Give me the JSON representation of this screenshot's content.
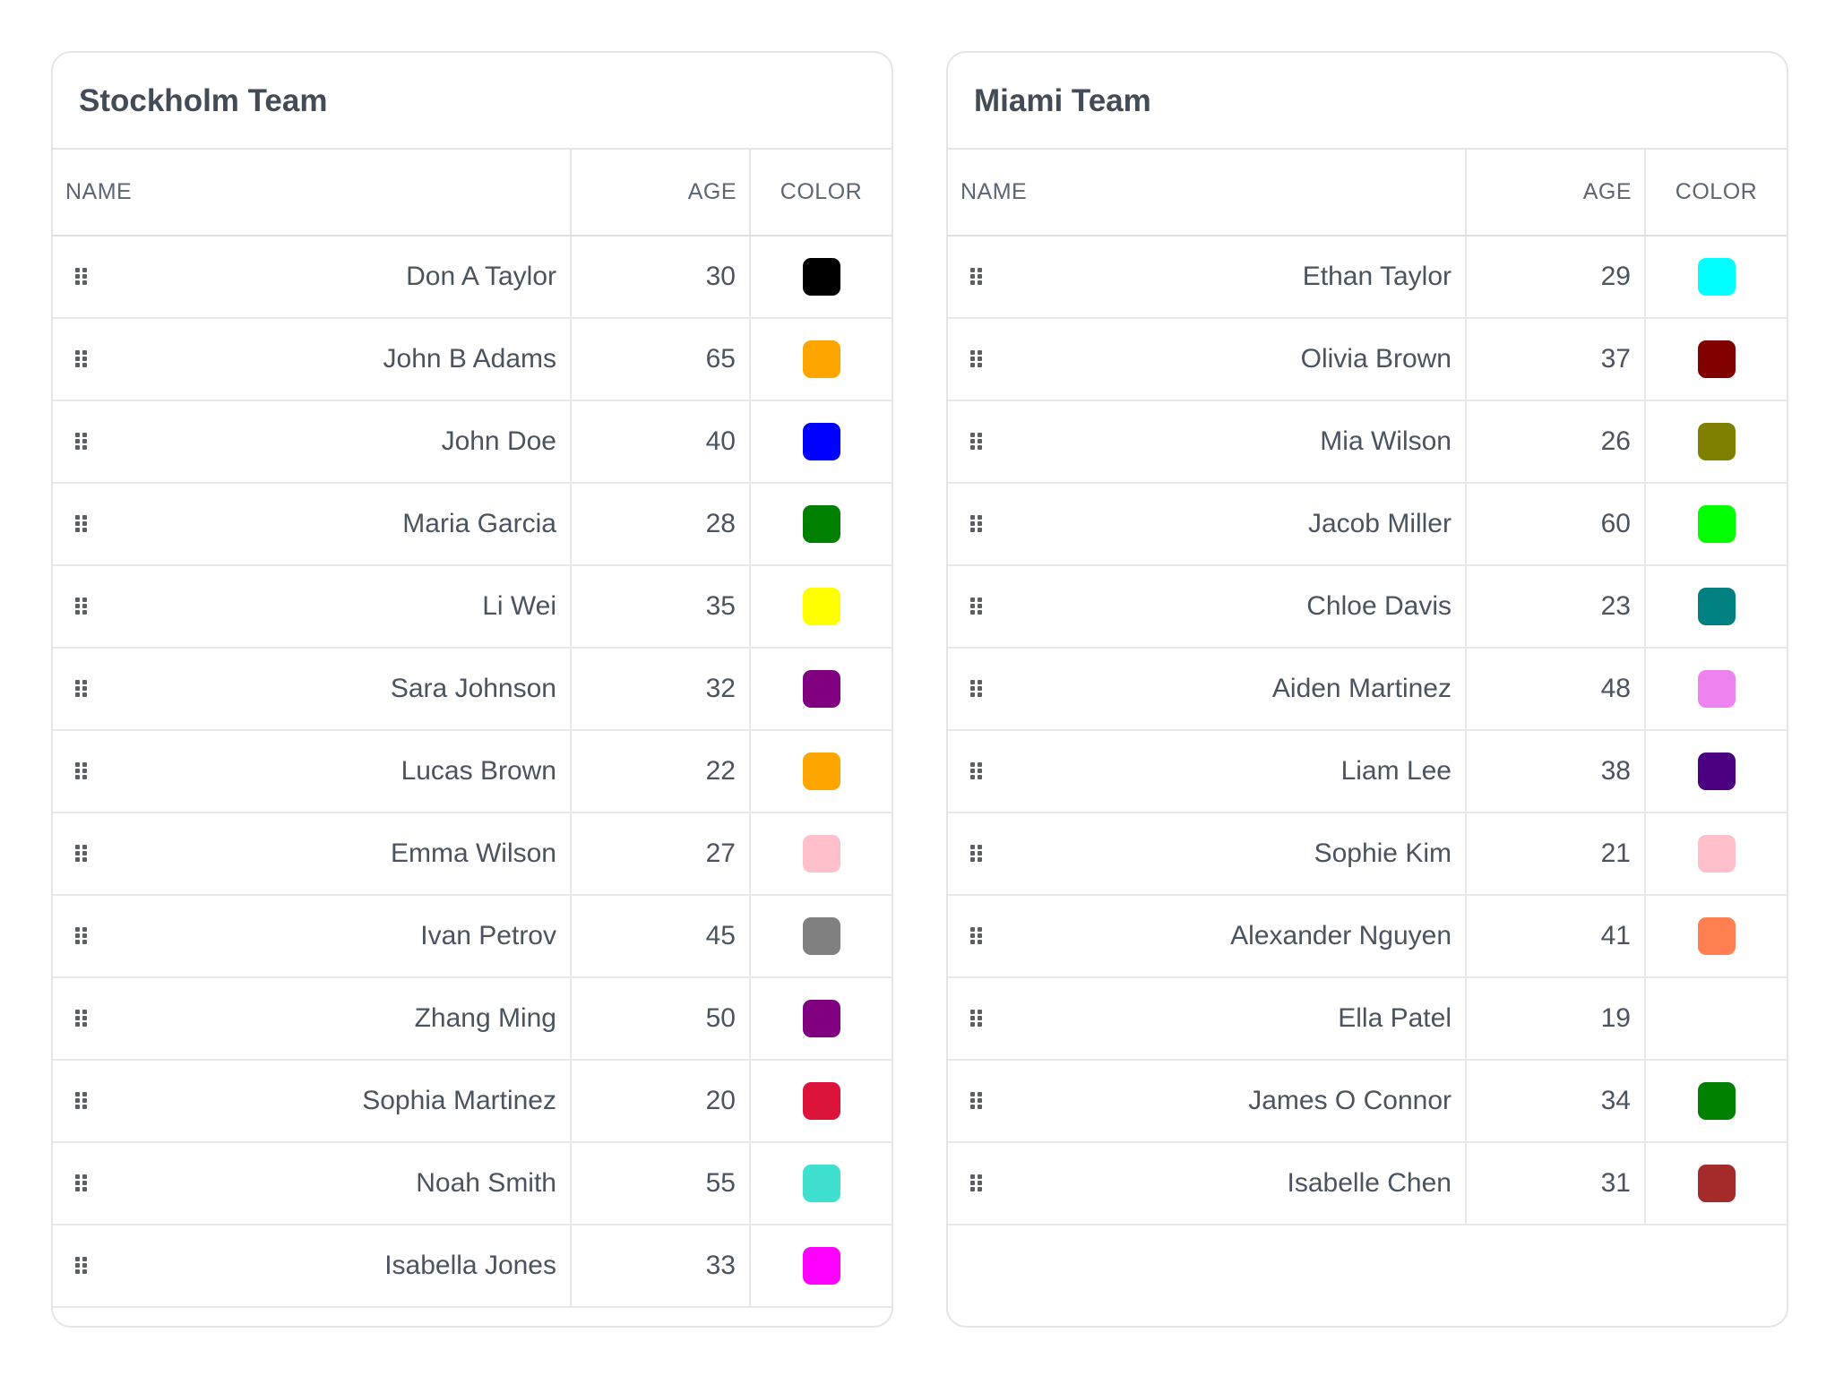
{
  "columns": {
    "name": "NAME",
    "age": "AGE",
    "color": "COLOR"
  },
  "teams": [
    {
      "title": "Stockholm Team",
      "rows": [
        {
          "name": "Don A Taylor",
          "age": "30",
          "color": "#000000"
        },
        {
          "name": "John B Adams",
          "age": "65",
          "color": "#FFA500"
        },
        {
          "name": "John Doe",
          "age": "40",
          "color": "#0000FF"
        },
        {
          "name": "Maria Garcia",
          "age": "28",
          "color": "#008000"
        },
        {
          "name": "Li Wei",
          "age": "35",
          "color": "#FFFF00"
        },
        {
          "name": "Sara Johnson",
          "age": "32",
          "color": "#800080"
        },
        {
          "name": "Lucas Brown",
          "age": "22",
          "color": "#FFA500"
        },
        {
          "name": "Emma Wilson",
          "age": "27",
          "color": "#FFC0CB"
        },
        {
          "name": "Ivan Petrov",
          "age": "45",
          "color": "#808080"
        },
        {
          "name": "Zhang Ming",
          "age": "50",
          "color": "#800080"
        },
        {
          "name": "Sophia Martinez",
          "age": "20",
          "color": "#DC143C"
        },
        {
          "name": "Noah Smith",
          "age": "55",
          "color": "#40E0D0"
        },
        {
          "name": "Isabella Jones",
          "age": "33",
          "color": "#FF00FF"
        }
      ]
    },
    {
      "title": "Miami Team",
      "rows": [
        {
          "name": "Ethan Taylor",
          "age": "29",
          "color": "#00FFFF"
        },
        {
          "name": "Olivia Brown",
          "age": "37",
          "color": "#800000"
        },
        {
          "name": "Mia Wilson",
          "age": "26",
          "color": "#808000"
        },
        {
          "name": "Jacob Miller",
          "age": "60",
          "color": "#00FF00"
        },
        {
          "name": "Chloe Davis",
          "age": "23",
          "color": "#008080"
        },
        {
          "name": "Aiden Martinez",
          "age": "48",
          "color": "#EE82EE"
        },
        {
          "name": "Liam Lee",
          "age": "38",
          "color": "#4B0082"
        },
        {
          "name": "Sophie Kim",
          "age": "21",
          "color": "#FFC0CB"
        },
        {
          "name": "Alexander Nguyen",
          "age": "41",
          "color": "#FF7F50"
        },
        {
          "name": "Ella Patel",
          "age": "19",
          "color": ""
        },
        {
          "name": "James O Connor",
          "age": "34",
          "color": "#008000"
        },
        {
          "name": "Isabelle Chen",
          "age": "31",
          "color": "#A52A2A"
        }
      ]
    }
  ],
  "icons": {
    "drag_handle": "drag-handle-icon"
  }
}
